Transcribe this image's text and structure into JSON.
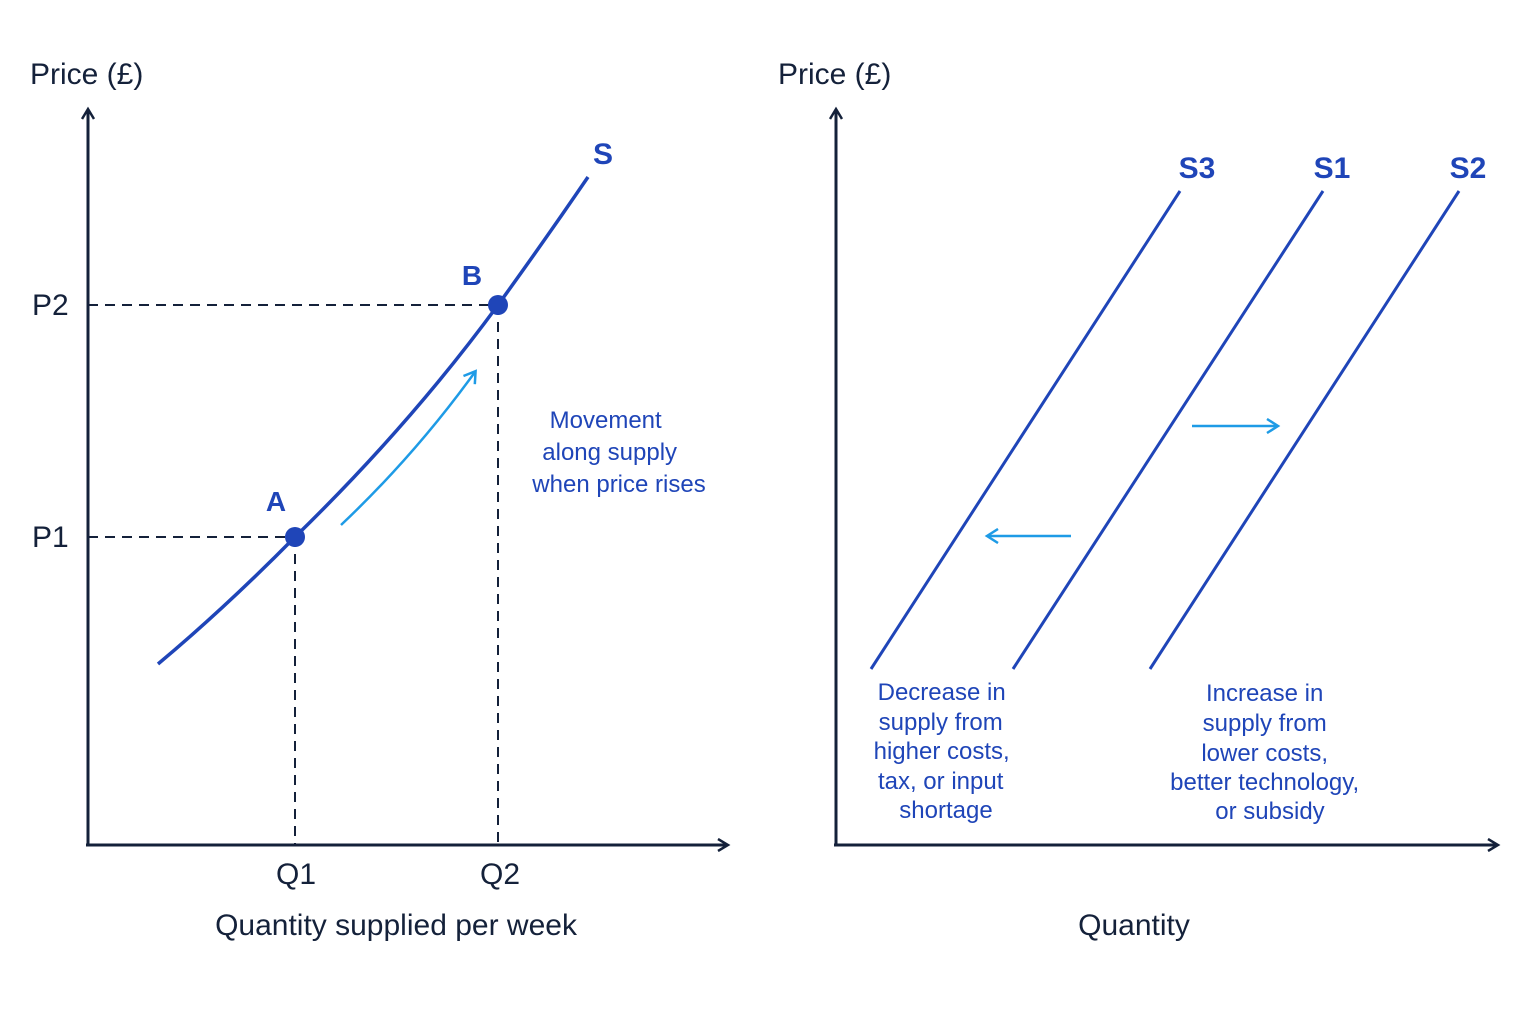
{
  "colors": {
    "axis": "#14213a",
    "curve": "#1f45b8",
    "arrow": "#1e9be6",
    "text": "#1f45b8"
  },
  "left_chart": {
    "y_title": "Price (£)",
    "x_title": "Quantity supplied per week",
    "curve_label": "S",
    "price_ticks": [
      "P1",
      "P2"
    ],
    "quantity_ticks": [
      "Q1",
      "Q2"
    ],
    "point_a": "A",
    "point_b": "B",
    "annotation": [
      "Movement",
      "along supply",
      "when price rises"
    ]
  },
  "right_chart": {
    "y_title": "Price (£)",
    "x_title": "Quantity",
    "curves": [
      "S3",
      "S1",
      "S2"
    ],
    "decrease_note": [
      "Decrease in",
      "supply from",
      "higher costs,",
      "tax, or input",
      "shortage"
    ],
    "increase_note": [
      "Increase in",
      "supply from",
      "lower costs,",
      "better technology,",
      "or subsidy"
    ]
  }
}
